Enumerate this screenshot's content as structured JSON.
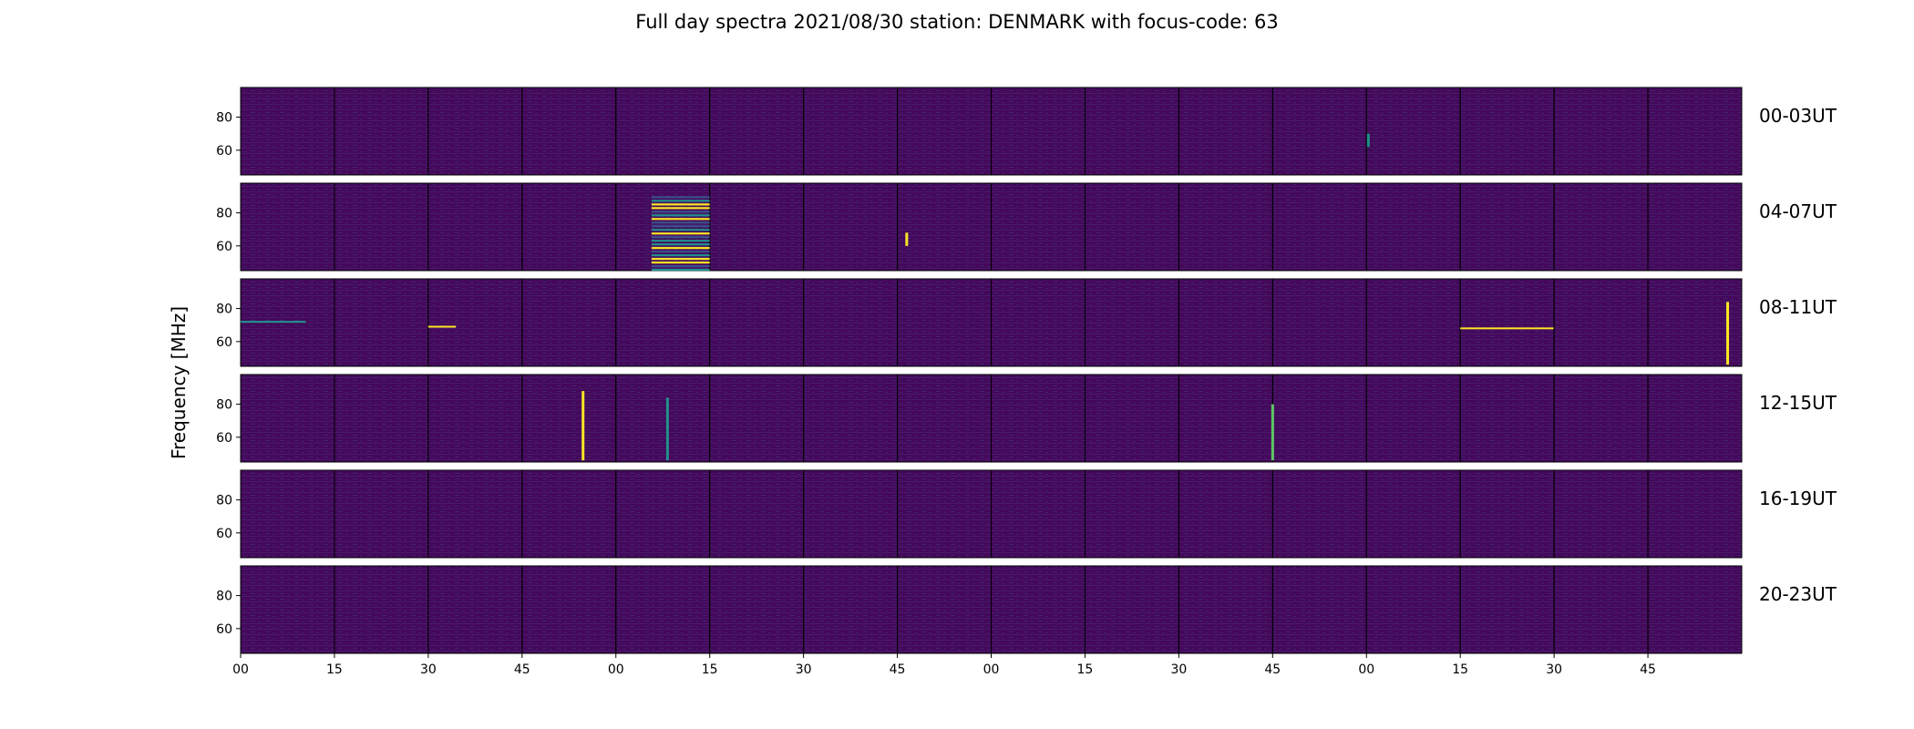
{
  "chart_data": {
    "type": "heatmap",
    "title": "Full day spectra 2021/08/30 station: DENMARK with focus-code: 63",
    "ylabel": "Frequency [MHz]",
    "xlabel": "",
    "rows": [
      "00-03UT",
      "04-07UT",
      "08-11UT",
      "12-15UT",
      "16-19UT",
      "20-23UT"
    ],
    "panels_per_row": 16,
    "x_ticks": [
      "00",
      "15",
      "30",
      "45",
      "00",
      "15",
      "30",
      "45",
      "00",
      "15",
      "30",
      "45",
      "00",
      "15",
      "30",
      "45"
    ],
    "y_ticks": [
      60,
      80
    ],
    "ylim": [
      45,
      98
    ],
    "colormap": {
      "low": "#440154",
      "mid1": "#3b528b",
      "mid2": "#21918c",
      "mid3": "#5ec962",
      "high": "#fde725"
    },
    "events": [
      {
        "row": 0,
        "panel": 12,
        "x": 0.02,
        "f0": 62,
        "f1": 70,
        "kind": "vertical",
        "color": "#21918c"
      },
      {
        "row": 1,
        "panel": 4,
        "x": 0.4,
        "f0": 45,
        "f1": 90,
        "kind": "block",
        "color": "#fde725"
      },
      {
        "row": 1,
        "panel": 7,
        "x": 0.1,
        "f0": 60,
        "f1": 68,
        "kind": "vertical",
        "color": "#fde725"
      },
      {
        "row": 2,
        "panel": 0,
        "x": 0.5,
        "f0": 72,
        "f1": 72,
        "kind": "horizontal",
        "color": "#21918c"
      },
      {
        "row": 2,
        "panel": 2,
        "x": 0.1,
        "f0": 69,
        "f1": 69,
        "kind": "horizontal",
        "color": "#fde725"
      },
      {
        "row": 2,
        "panel": 13,
        "x": 0.8,
        "f0": 68,
        "f1": 68,
        "kind": "horizontal",
        "color": "#fde725"
      },
      {
        "row": 2,
        "panel": 15,
        "x": 0.85,
        "f0": 46,
        "f1": 84,
        "kind": "vertical",
        "color": "#fde725"
      },
      {
        "row": 3,
        "panel": 3,
        "x": 0.65,
        "f0": 46,
        "f1": 88,
        "kind": "vertical",
        "color": "#fde725"
      },
      {
        "row": 3,
        "panel": 4,
        "x": 0.55,
        "f0": 46,
        "f1": 84,
        "kind": "vertical",
        "color": "#21918c"
      },
      {
        "row": 3,
        "panel": 11,
        "x": 0.0,
        "f0": 46,
        "f1": 80,
        "kind": "vertical",
        "color": "#5ec962"
      }
    ]
  }
}
